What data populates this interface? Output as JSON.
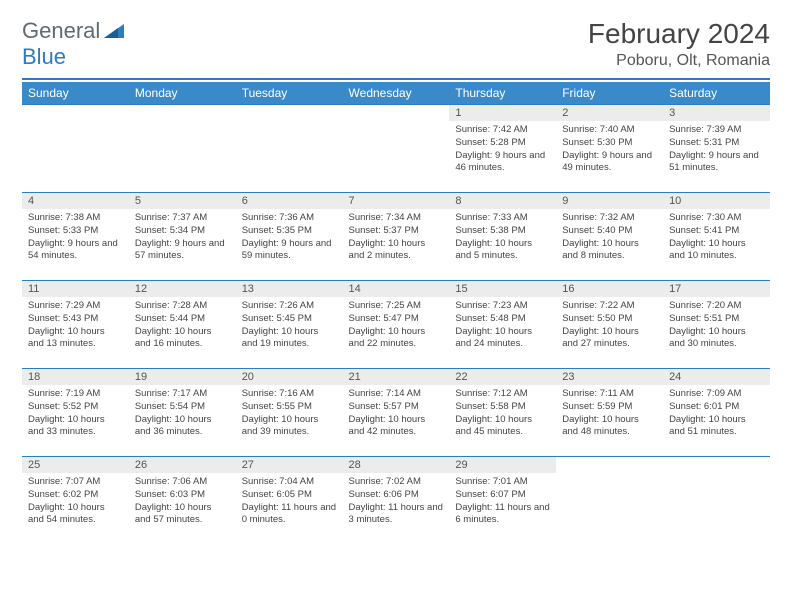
{
  "logo": {
    "text1": "General",
    "text2": "Blue"
  },
  "title": "February 2024",
  "location": "Poboru, Olt, Romania",
  "colors": {
    "header_bg": "#3a8ac9",
    "divider": "#2e7cc0",
    "daynum_bg": "#ececec",
    "text": "#444444"
  },
  "weekdays": [
    "Sunday",
    "Monday",
    "Tuesday",
    "Wednesday",
    "Thursday",
    "Friday",
    "Saturday"
  ],
  "weeks": [
    [
      {
        "empty": true
      },
      {
        "empty": true
      },
      {
        "empty": true
      },
      {
        "empty": true
      },
      {
        "day": "1",
        "sunrise": "Sunrise: 7:42 AM",
        "sunset": "Sunset: 5:28 PM",
        "daylight": "Daylight: 9 hours and 46 minutes."
      },
      {
        "day": "2",
        "sunrise": "Sunrise: 7:40 AM",
        "sunset": "Sunset: 5:30 PM",
        "daylight": "Daylight: 9 hours and 49 minutes."
      },
      {
        "day": "3",
        "sunrise": "Sunrise: 7:39 AM",
        "sunset": "Sunset: 5:31 PM",
        "daylight": "Daylight: 9 hours and 51 minutes."
      }
    ],
    [
      {
        "day": "4",
        "sunrise": "Sunrise: 7:38 AM",
        "sunset": "Sunset: 5:33 PM",
        "daylight": "Daylight: 9 hours and 54 minutes."
      },
      {
        "day": "5",
        "sunrise": "Sunrise: 7:37 AM",
        "sunset": "Sunset: 5:34 PM",
        "daylight": "Daylight: 9 hours and 57 minutes."
      },
      {
        "day": "6",
        "sunrise": "Sunrise: 7:36 AM",
        "sunset": "Sunset: 5:35 PM",
        "daylight": "Daylight: 9 hours and 59 minutes."
      },
      {
        "day": "7",
        "sunrise": "Sunrise: 7:34 AM",
        "sunset": "Sunset: 5:37 PM",
        "daylight": "Daylight: 10 hours and 2 minutes."
      },
      {
        "day": "8",
        "sunrise": "Sunrise: 7:33 AM",
        "sunset": "Sunset: 5:38 PM",
        "daylight": "Daylight: 10 hours and 5 minutes."
      },
      {
        "day": "9",
        "sunrise": "Sunrise: 7:32 AM",
        "sunset": "Sunset: 5:40 PM",
        "daylight": "Daylight: 10 hours and 8 minutes."
      },
      {
        "day": "10",
        "sunrise": "Sunrise: 7:30 AM",
        "sunset": "Sunset: 5:41 PM",
        "daylight": "Daylight: 10 hours and 10 minutes."
      }
    ],
    [
      {
        "day": "11",
        "sunrise": "Sunrise: 7:29 AM",
        "sunset": "Sunset: 5:43 PM",
        "daylight": "Daylight: 10 hours and 13 minutes."
      },
      {
        "day": "12",
        "sunrise": "Sunrise: 7:28 AM",
        "sunset": "Sunset: 5:44 PM",
        "daylight": "Daylight: 10 hours and 16 minutes."
      },
      {
        "day": "13",
        "sunrise": "Sunrise: 7:26 AM",
        "sunset": "Sunset: 5:45 PM",
        "daylight": "Daylight: 10 hours and 19 minutes."
      },
      {
        "day": "14",
        "sunrise": "Sunrise: 7:25 AM",
        "sunset": "Sunset: 5:47 PM",
        "daylight": "Daylight: 10 hours and 22 minutes."
      },
      {
        "day": "15",
        "sunrise": "Sunrise: 7:23 AM",
        "sunset": "Sunset: 5:48 PM",
        "daylight": "Daylight: 10 hours and 24 minutes."
      },
      {
        "day": "16",
        "sunrise": "Sunrise: 7:22 AM",
        "sunset": "Sunset: 5:50 PM",
        "daylight": "Daylight: 10 hours and 27 minutes."
      },
      {
        "day": "17",
        "sunrise": "Sunrise: 7:20 AM",
        "sunset": "Sunset: 5:51 PM",
        "daylight": "Daylight: 10 hours and 30 minutes."
      }
    ],
    [
      {
        "day": "18",
        "sunrise": "Sunrise: 7:19 AM",
        "sunset": "Sunset: 5:52 PM",
        "daylight": "Daylight: 10 hours and 33 minutes."
      },
      {
        "day": "19",
        "sunrise": "Sunrise: 7:17 AM",
        "sunset": "Sunset: 5:54 PM",
        "daylight": "Daylight: 10 hours and 36 minutes."
      },
      {
        "day": "20",
        "sunrise": "Sunrise: 7:16 AM",
        "sunset": "Sunset: 5:55 PM",
        "daylight": "Daylight: 10 hours and 39 minutes."
      },
      {
        "day": "21",
        "sunrise": "Sunrise: 7:14 AM",
        "sunset": "Sunset: 5:57 PM",
        "daylight": "Daylight: 10 hours and 42 minutes."
      },
      {
        "day": "22",
        "sunrise": "Sunrise: 7:12 AM",
        "sunset": "Sunset: 5:58 PM",
        "daylight": "Daylight: 10 hours and 45 minutes."
      },
      {
        "day": "23",
        "sunrise": "Sunrise: 7:11 AM",
        "sunset": "Sunset: 5:59 PM",
        "daylight": "Daylight: 10 hours and 48 minutes."
      },
      {
        "day": "24",
        "sunrise": "Sunrise: 7:09 AM",
        "sunset": "Sunset: 6:01 PM",
        "daylight": "Daylight: 10 hours and 51 minutes."
      }
    ],
    [
      {
        "day": "25",
        "sunrise": "Sunrise: 7:07 AM",
        "sunset": "Sunset: 6:02 PM",
        "daylight": "Daylight: 10 hours and 54 minutes."
      },
      {
        "day": "26",
        "sunrise": "Sunrise: 7:06 AM",
        "sunset": "Sunset: 6:03 PM",
        "daylight": "Daylight: 10 hours and 57 minutes."
      },
      {
        "day": "27",
        "sunrise": "Sunrise: 7:04 AM",
        "sunset": "Sunset: 6:05 PM",
        "daylight": "Daylight: 11 hours and 0 minutes."
      },
      {
        "day": "28",
        "sunrise": "Sunrise: 7:02 AM",
        "sunset": "Sunset: 6:06 PM",
        "daylight": "Daylight: 11 hours and 3 minutes."
      },
      {
        "day": "29",
        "sunrise": "Sunrise: 7:01 AM",
        "sunset": "Sunset: 6:07 PM",
        "daylight": "Daylight: 11 hours and 6 minutes."
      },
      {
        "empty": true
      },
      {
        "empty": true
      }
    ]
  ]
}
